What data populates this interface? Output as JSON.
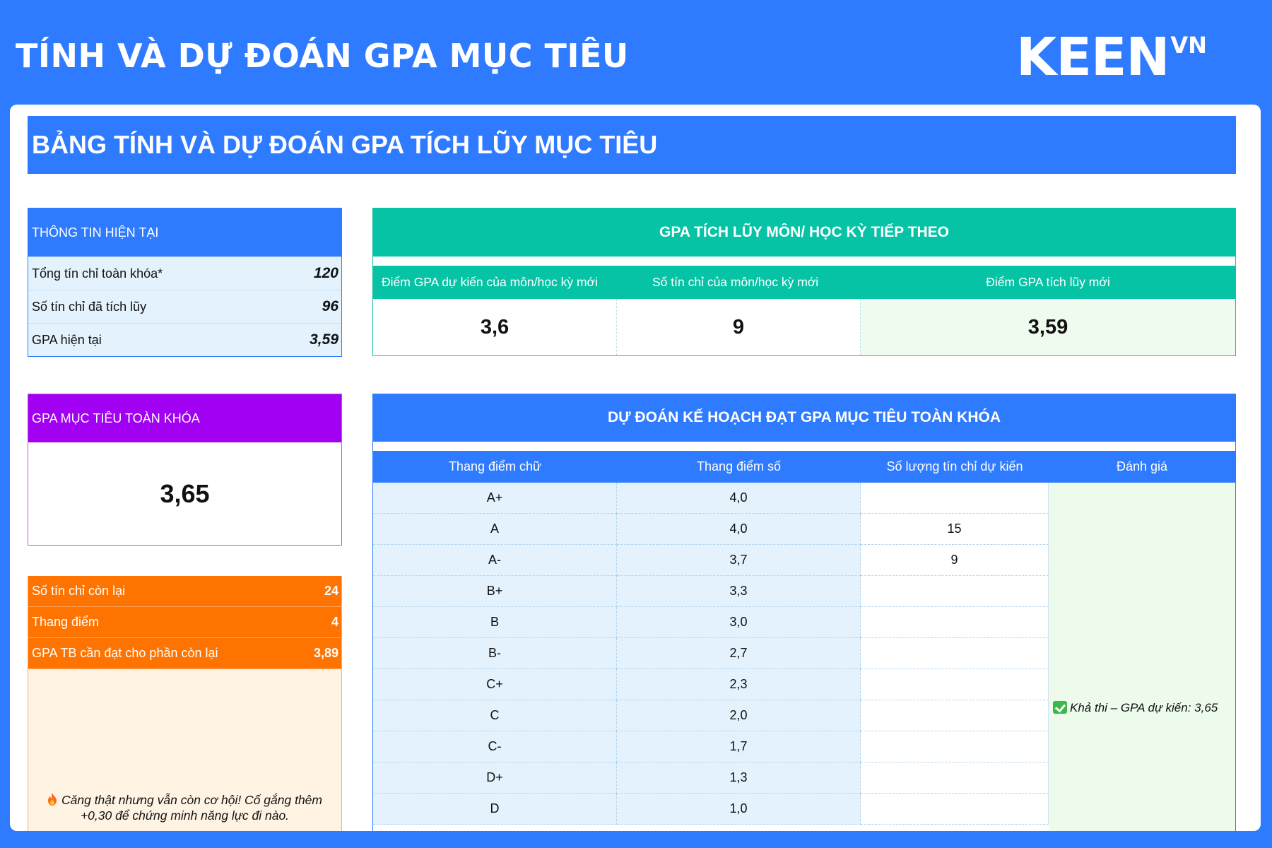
{
  "header": {
    "title": "TÍNH VÀ DỰ ĐOÁN GPA MỤC TIÊU",
    "logo_text": "KEEN",
    "logo_sup": "VN"
  },
  "banner": {
    "title": "BẢNG TÍNH VÀ DỰ ĐOÁN GPA TÍCH LŨY MỤC TIÊU"
  },
  "current_info": {
    "title": "THÔNG TIN HIỆN TẠI",
    "rows": [
      {
        "label": "Tổng tín chỉ toàn khóa*",
        "value": "120"
      },
      {
        "label": "Số tín chỉ đã tích lũy",
        "value": "96"
      },
      {
        "label": "GPA hiện tại",
        "value": "3,59"
      }
    ]
  },
  "target": {
    "title": "GPA MỤC TIÊU TOÀN KHÓA",
    "value": "3,65"
  },
  "remaining": {
    "rows": [
      {
        "label": "Số tín chỉ còn lại",
        "value": "24"
      },
      {
        "label": "Thang điểm",
        "value": "4"
      },
      {
        "label": "GPA TB cần đạt cho phần còn lại",
        "value": "3,89"
      }
    ],
    "message": "Căng thật nhưng vẫn còn cơ hội! Cố gắng thêm +0,30 để chứng minh năng lực đi nào.",
    "message_icon": "flame-icon"
  },
  "next_semester": {
    "title": "GPA TÍCH LŨY MÔN/ HỌC KỲ TIẾP THEO",
    "columns": [
      "Điểm GPA dự kiến của môn/học kỳ mới",
      "Số tín chỉ của môn/học kỳ mới",
      "Điểm GPA tích lũy mới"
    ],
    "values": [
      "3,6",
      "9",
      "3,59"
    ]
  },
  "plan": {
    "title": "DỰ ĐOÁN KẾ HOẠCH ĐẠT GPA MỤC TIÊU TOÀN KHÓA",
    "columns": [
      "Thang điểm chữ",
      "Thang điểm số",
      "Số lượng tín chỉ dự kiến",
      "Đánh giá"
    ],
    "rows": [
      {
        "letter": "A+",
        "score": "4,0",
        "credits": ""
      },
      {
        "letter": "A",
        "score": "4,0",
        "credits": "15"
      },
      {
        "letter": "A-",
        "score": "3,7",
        "credits": "9"
      },
      {
        "letter": "B+",
        "score": "3,3",
        "credits": ""
      },
      {
        "letter": "B",
        "score": "3,0",
        "credits": ""
      },
      {
        "letter": "B-",
        "score": "2,7",
        "credits": ""
      },
      {
        "letter": "C+",
        "score": "2,3",
        "credits": ""
      },
      {
        "letter": "C",
        "score": "2,0",
        "credits": ""
      },
      {
        "letter": "C-",
        "score": "1,7",
        "credits": ""
      },
      {
        "letter": "D+",
        "score": "1,3",
        "credits": ""
      },
      {
        "letter": "D",
        "score": "1,0",
        "credits": ""
      }
    ],
    "evaluation": "Khả thi – GPA dự kiến: 3,65",
    "evaluation_icon": "check-mark-icon"
  },
  "colors": {
    "primary_blue": "#2e7bff",
    "teal": "#06c3a6",
    "purple": "#a100f2",
    "orange": "#ff7400"
  }
}
